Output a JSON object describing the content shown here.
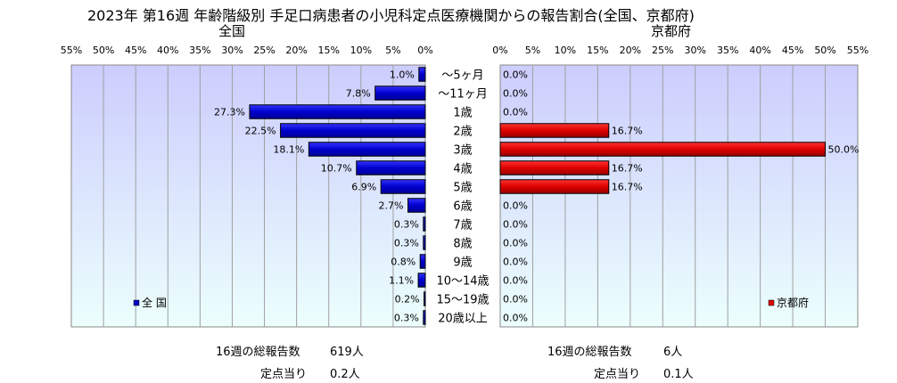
{
  "title": "2023年 第16週  年齢階級別 手足口病患者の小児科定点医療機関からの報告割合(全国、京都府)",
  "chart_data": {
    "type": "bar",
    "categories": [
      "～5ヶ月",
      "～11ヶ月",
      "1歳",
      "2歳",
      "3歳",
      "4歳",
      "5歳",
      "6歳",
      "7歳",
      "8歳",
      "9歳",
      "10～14歳",
      "15～19歳",
      "20歳以上"
    ],
    "xlim": [
      0,
      55
    ],
    "ticks": [
      "0%",
      "5%",
      "10%",
      "15%",
      "20%",
      "25%",
      "30%",
      "35%",
      "40%",
      "45%",
      "50%",
      "55%"
    ],
    "grid": true,
    "panels": [
      {
        "title": "全国",
        "legend": "全 国",
        "legend_position": "bottom-left",
        "color": "#0000cc",
        "values": [
          1.0,
          7.8,
          27.3,
          22.5,
          18.1,
          10.7,
          6.9,
          2.7,
          0.3,
          0.3,
          0.8,
          1.1,
          0.2,
          0.3
        ],
        "labels": [
          "1.0%",
          "7.8%",
          "27.3%",
          "22.5%",
          "18.1%",
          "10.7%",
          "6.9%",
          "2.7%",
          "0.3%",
          "0.3%",
          "0.8%",
          "1.1%",
          "0.2%",
          "0.3%"
        ]
      },
      {
        "title": "京都府",
        "legend": "京都府",
        "legend_position": "bottom-right",
        "color": "#dd0000",
        "values": [
          0.0,
          0.0,
          0.0,
          16.7,
          50.0,
          16.7,
          16.7,
          0.0,
          0.0,
          0.0,
          0.0,
          0.0,
          0.0,
          0.0
        ],
        "labels": [
          "0.0%",
          "0.0%",
          "0.0%",
          "16.7%",
          "50.0%",
          "16.7%",
          "16.7%",
          "0.0%",
          "0.0%",
          "0.0%",
          "0.0%",
          "0.0%",
          "0.0%",
          "0.0%"
        ]
      }
    ]
  },
  "footer": {
    "national": {
      "total_label": "16週の総報告数",
      "total_value": "619人",
      "per_label": "定点当り",
      "per_value": "0.2人"
    },
    "kyoto": {
      "total_label": "16週の総報告数",
      "total_value": "6人",
      "per_label": "定点当り",
      "per_value": "0.1人"
    }
  },
  "colors": {
    "plot_gradient_top": "#cccdfd",
    "plot_gradient_bottom": "#ecfffd",
    "grid": "#a0a0a0"
  }
}
